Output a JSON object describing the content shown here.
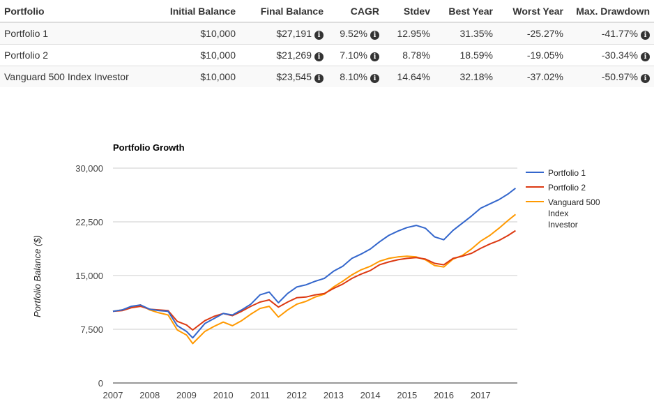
{
  "table": {
    "headers": [
      "Portfolio",
      "Initial Balance",
      "Final Balance",
      "CAGR",
      "Stdev",
      "Best Year",
      "Worst Year",
      "Max. Drawdown"
    ],
    "rows": [
      {
        "name": "Portfolio 1",
        "initial": "$10,000",
        "final": "$27,191",
        "cagr": "9.52%",
        "stdev": "12.95%",
        "best": "31.35%",
        "worst": "-25.27%",
        "drawdown": "-41.77%"
      },
      {
        "name": "Portfolio 2",
        "initial": "$10,000",
        "final": "$21,269",
        "cagr": "7.10%",
        "stdev": "8.78%",
        "best": "18.59%",
        "worst": "-19.05%",
        "drawdown": "-30.34%"
      },
      {
        "name": "Vanguard 500 Index Investor",
        "initial": "$10,000",
        "final": "$23,545",
        "cagr": "8.10%",
        "stdev": "14.64%",
        "best": "32.18%",
        "worst": "-37.02%",
        "drawdown": "-50.97%"
      }
    ],
    "info_icon": "info-icon"
  },
  "chart_data": {
    "type": "line",
    "title": "Portfolio Growth",
    "xlabel": "",
    "ylabel": "Portfolio Balance ($)",
    "ylim": [
      0,
      30000
    ],
    "xlim": [
      2007,
      2018
    ],
    "yticks": [
      0,
      7500,
      15000,
      22500,
      30000
    ],
    "ytick_labels": [
      "0",
      "7,500",
      "15,000",
      "22,500",
      "30,000"
    ],
    "xticks": [
      2007,
      2008,
      2009,
      2010,
      2011,
      2012,
      2013,
      2014,
      2015,
      2016,
      2017
    ],
    "xtick_labels": [
      "2007",
      "2008",
      "2009",
      "2010",
      "2011",
      "2012",
      "2013",
      "2014",
      "2015",
      "2016",
      "2017"
    ],
    "grid": "horizontal",
    "legend_position": "right",
    "x": [
      2007.0,
      2007.25,
      2007.5,
      2007.75,
      2008.0,
      2008.25,
      2008.5,
      2008.75,
      2009.0,
      2009.17,
      2009.5,
      2009.75,
      2010.0,
      2010.25,
      2010.5,
      2010.75,
      2011.0,
      2011.25,
      2011.5,
      2011.75,
      2012.0,
      2012.25,
      2012.5,
      2012.75,
      2013.0,
      2013.25,
      2013.5,
      2013.75,
      2014.0,
      2014.25,
      2014.5,
      2014.75,
      2015.0,
      2015.25,
      2015.5,
      2015.75,
      2016.0,
      2016.25,
      2016.5,
      2016.75,
      2017.0,
      2017.25,
      2017.5,
      2017.75,
      2017.95
    ],
    "series": [
      {
        "name": "Portfolio 1",
        "color": "#3366cc",
        "values": [
          10000,
          10200,
          10700,
          10900,
          10300,
          10100,
          10000,
          8000,
          7200,
          6300,
          8300,
          9000,
          9700,
          9500,
          10200,
          11000,
          12300,
          12700,
          11200,
          12500,
          13400,
          13700,
          14200,
          14600,
          15600,
          16300,
          17400,
          18000,
          18700,
          19700,
          20600,
          21200,
          21700,
          22000,
          21600,
          20400,
          20000,
          21300,
          22300,
          23300,
          24400,
          25000,
          25600,
          26400,
          27191
        ]
      },
      {
        "name": "Portfolio 2",
        "color": "#dc3912",
        "values": [
          10000,
          10100,
          10500,
          10700,
          10300,
          10200,
          10100,
          8600,
          8100,
          7400,
          8700,
          9300,
          9700,
          9400,
          10000,
          10700,
          11300,
          11600,
          10600,
          11300,
          11900,
          12000,
          12300,
          12500,
          13200,
          13800,
          14600,
          15200,
          15700,
          16500,
          16900,
          17200,
          17400,
          17500,
          17300,
          16700,
          16500,
          17400,
          17700,
          18100,
          18800,
          19400,
          19900,
          20600,
          21269
        ]
      },
      {
        "name": "Vanguard 500 Index Investor",
        "color": "#ff9900",
        "values": [
          10000,
          10200,
          10600,
          10900,
          10200,
          9800,
          9500,
          7400,
          6700,
          5500,
          7200,
          7900,
          8500,
          8000,
          8700,
          9600,
          10400,
          10700,
          9200,
          10200,
          11000,
          11400,
          12000,
          12400,
          13400,
          14200,
          15100,
          15800,
          16300,
          17000,
          17400,
          17600,
          17700,
          17600,
          17200,
          16400,
          16200,
          17300,
          17800,
          18700,
          19800,
          20600,
          21600,
          22700,
          23545
        ]
      }
    ]
  }
}
